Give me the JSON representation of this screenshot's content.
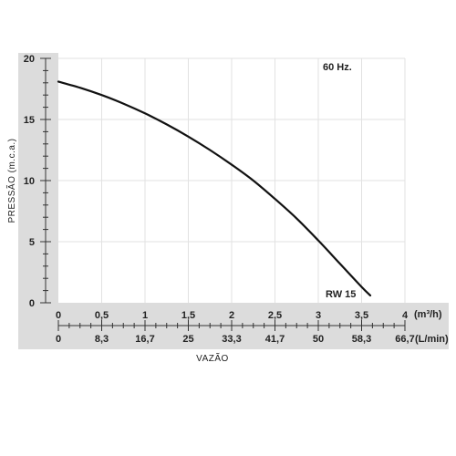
{
  "chart_data": {
    "type": "line",
    "frequency_label": "60 Hz.",
    "ylabel": "PRESSÃO (m.c.a.)",
    "xlabel": "VAZÃO",
    "x_unit_primary": "(m³/h)",
    "x_unit_secondary": "(L/min)",
    "ylim": [
      0,
      20
    ],
    "xlim": [
      0,
      4
    ],
    "y_ticks": [
      "0",
      "5",
      "10",
      "15",
      "20"
    ],
    "x_ticks_primary": [
      "0",
      "0,5",
      "1",
      "1,5",
      "2",
      "2,5",
      "3",
      "3,5",
      "4"
    ],
    "x_ticks_secondary": [
      "0",
      "8,3",
      "16,7",
      "25",
      "33,3",
      "41,7",
      "50",
      "58,3",
      "66,7"
    ],
    "grid": true,
    "series": [
      {
        "name": "RW 15",
        "x": [
          0,
          0.25,
          0.5,
          0.75,
          1.0,
          1.25,
          1.5,
          1.75,
          2.0,
          2.25,
          2.5,
          2.75,
          3.0,
          3.25,
          3.5,
          3.6
        ],
        "y": [
          18.1,
          17.6,
          17.0,
          16.3,
          15.5,
          14.6,
          13.6,
          12.5,
          11.3,
          10.0,
          8.5,
          6.9,
          5.1,
          3.2,
          1.3,
          0.6
        ]
      }
    ]
  }
}
